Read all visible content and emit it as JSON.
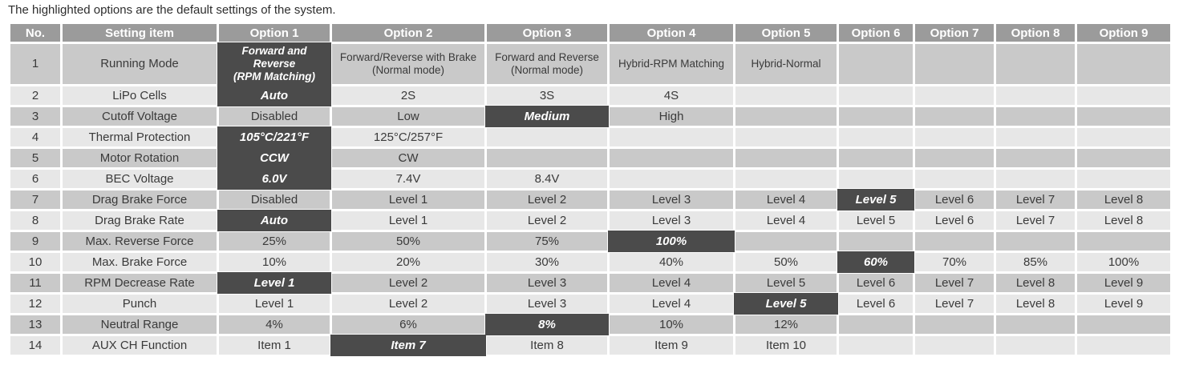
{
  "note": "The highlighted options are the default settings of the system.",
  "table": {
    "headers": [
      "No.",
      "Setting item",
      "Option 1",
      "Option 2",
      "Option 3",
      "Option 4",
      "Option 5",
      "Option 6",
      "Option 7",
      "Option 8",
      "Option 9"
    ],
    "colors": {
      "header_bg": "#9b9b9b",
      "row_dark": "#c9c9c9",
      "row_light": "#e7e7e7",
      "highlight_bg": "#4b4b4b"
    },
    "rows": [
      {
        "no": "1",
        "item": "Running Mode",
        "options": [
          "Forward and Reverse\n(RPM Matching)",
          "Forward/Reverse with Brake\n(Normal mode)",
          "Forward and Reverse\n(Normal mode)",
          "Hybrid-RPM Matching",
          "Hybrid-Normal",
          "",
          "",
          "",
          ""
        ],
        "default_index": 0
      },
      {
        "no": "2",
        "item": "LiPo Cells",
        "options": [
          "Auto",
          "2S",
          "3S",
          "4S",
          "",
          "",
          "",
          "",
          ""
        ],
        "default_index": 0
      },
      {
        "no": "3",
        "item": "Cutoff Voltage",
        "options": [
          "Disabled",
          "Low",
          "Medium",
          "High",
          "",
          "",
          "",
          "",
          ""
        ],
        "default_index": 2
      },
      {
        "no": "4",
        "item": "Thermal Protection",
        "options": [
          "105°C/221°F",
          "125°C/257°F",
          "",
          "",
          "",
          "",
          "",
          "",
          ""
        ],
        "default_index": 0
      },
      {
        "no": "5",
        "item": "Motor Rotation",
        "options": [
          "CCW",
          "CW",
          "",
          "",
          "",
          "",
          "",
          "",
          ""
        ],
        "default_index": 0
      },
      {
        "no": "6",
        "item": "BEC Voltage",
        "options": [
          "6.0V",
          "7.4V",
          "8.4V",
          "",
          "",
          "",
          "",
          "",
          ""
        ],
        "default_index": 0
      },
      {
        "no": "7",
        "item": "Drag Brake Force",
        "options": [
          "Disabled",
          "Level 1",
          "Level 2",
          "Level 3",
          "Level 4",
          "Level 5",
          "Level 6",
          "Level 7",
          "Level 8"
        ],
        "default_index": 5
      },
      {
        "no": "8",
        "item": "Drag Brake Rate",
        "options": [
          "Auto",
          "Level 1",
          "Level 2",
          "Level 3",
          "Level 4",
          "Level 5",
          "Level 6",
          "Level 7",
          "Level 8"
        ],
        "default_index": 0
      },
      {
        "no": "9",
        "item": "Max. Reverse Force",
        "options": [
          "25%",
          "50%",
          "75%",
          "100%",
          "",
          "",
          "",
          "",
          ""
        ],
        "default_index": 3
      },
      {
        "no": "10",
        "item": "Max. Brake Force",
        "options": [
          "10%",
          "20%",
          "30%",
          "40%",
          "50%",
          "60%",
          "70%",
          "85%",
          "100%"
        ],
        "default_index": 5
      },
      {
        "no": "11",
        "item": "RPM Decrease Rate",
        "options": [
          "Level 1",
          "Level 2",
          "Level 3",
          "Level 4",
          "Level 5",
          "Level 6",
          "Level 7",
          "Level 8",
          "Level 9"
        ],
        "default_index": 0
      },
      {
        "no": "12",
        "item": "Punch",
        "options": [
          "Level 1",
          "Level 2",
          "Level 3",
          "Level 4",
          "Level 5",
          "Level 6",
          "Level 7",
          "Level 8",
          "Level 9"
        ],
        "default_index": 4
      },
      {
        "no": "13",
        "item": "Neutral Range",
        "options": [
          "4%",
          "6%",
          "8%",
          "10%",
          "12%",
          "",
          "",
          "",
          ""
        ],
        "default_index": 2
      },
      {
        "no": "14",
        "item": "AUX CH Function",
        "options": [
          "Item 1",
          "Item 7",
          "Item 8",
          "Item 9",
          "Item 10",
          "",
          "",
          "",
          ""
        ],
        "default_index": 1
      }
    ]
  }
}
